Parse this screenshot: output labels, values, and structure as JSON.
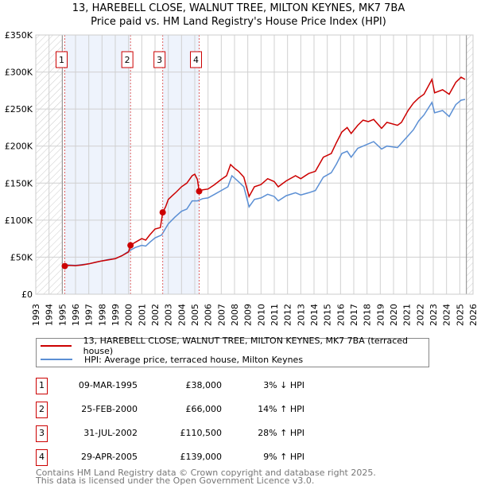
{
  "title": "13, HAREBELL CLOSE, WALNUT TREE, MILTON KEYNES, MK7 7BA",
  "subtitle": "Price paid vs. HM Land Registry's House Price Index (HPI)",
  "chart_data": {
    "type": "line",
    "xlim": [
      1993,
      2026
    ],
    "ylim": [
      0,
      350000
    ],
    "yticks": [
      0,
      50000,
      100000,
      150000,
      200000,
      250000,
      300000,
      350000
    ],
    "ytick_labels": [
      "£0",
      "£50K",
      "£100K",
      "£150K",
      "£200K",
      "£250K",
      "£300K",
      "£350K"
    ],
    "xticks": [
      "1993",
      "1994",
      "1995",
      "1996",
      "1997",
      "1998",
      "1999",
      "2000",
      "2001",
      "2002",
      "2003",
      "2004",
      "2005",
      "2006",
      "2007",
      "2008",
      "2009",
      "2010",
      "2011",
      "2012",
      "2013",
      "2014",
      "2015",
      "2016",
      "2017",
      "2018",
      "2019",
      "2020",
      "2021",
      "2022",
      "2023",
      "2024",
      "2025",
      "2026"
    ],
    "data_start": 1995.0,
    "data_end": 2025.5,
    "series": [
      {
        "name": "13, HAREBELL CLOSE, WALNUT TREE, MILTON KEYNES, MK7 7BA (terraced house)",
        "color": "#cc0000",
        "x": [
          1995.19,
          1995.5,
          1996,
          1996.5,
          1997,
          1997.5,
          1998,
          1998.5,
          1999,
          1999.5,
          2000.0,
          2000.15,
          2000.5,
          2001,
          2001.3,
          2001.6,
          2002,
          2002.4,
          2002.58,
          2002.8,
          2003,
          2003.3,
          2003.6,
          2004,
          2004.4,
          2004.8,
          2005.0,
          2005.2,
          2005.33,
          2005.6,
          2006,
          2006.5,
          2007,
          2007.4,
          2007.7,
          2008,
          2008.3,
          2008.7,
          2009.1,
          2009.5,
          2010,
          2010.5,
          2011,
          2011.3,
          2011.9,
          2012.6,
          2013,
          2013.6,
          2014.1,
          2014.7,
          2015.3,
          2015.7,
          2016.1,
          2016.5,
          2016.8,
          2017.3,
          2017.7,
          2018.1,
          2018.5,
          2019.1,
          2019.5,
          2020.3,
          2020.6,
          2021.1,
          2021.5,
          2021.9,
          2022.3,
          2022.9,
          2023.1,
          2023.7,
          2024.2,
          2024.7,
          2025.1,
          2025.4
        ],
        "y": [
          38000,
          39000,
          38500,
          39500,
          41000,
          43000,
          45000,
          46500,
          48000,
          52000,
          57000,
          66000,
          70000,
          75000,
          73000,
          80000,
          88000,
          90000,
          110500,
          118000,
          128000,
          133000,
          138000,
          145000,
          150000,
          160000,
          162000,
          155000,
          139000,
          141000,
          142000,
          148000,
          155000,
          160000,
          175000,
          170000,
          166000,
          158000,
          132000,
          145000,
          148000,
          156000,
          152000,
          145000,
          153000,
          160000,
          156000,
          163000,
          166000,
          185000,
          190000,
          205000,
          219000,
          225000,
          217000,
          228000,
          235000,
          233000,
          236000,
          224000,
          232000,
          228000,
          232000,
          248000,
          258000,
          265000,
          270000,
          290000,
          272000,
          276000,
          270000,
          286000,
          293000,
          290000
        ]
      },
      {
        "name": "HPI: Average price, terraced house, Milton Keynes",
        "color": "#5b8fd4",
        "x": [
          1995.19,
          1995.5,
          1996,
          1996.5,
          1997,
          1997.5,
          1998,
          1998.5,
          1999,
          1999.5,
          2000.0,
          2000.5,
          2001,
          2001.3,
          2001.6,
          2002,
          2002.5,
          2003,
          2003.5,
          2004,
          2004.4,
          2004.8,
          2005.2,
          2005.6,
          2006,
          2006.5,
          2007,
          2007.5,
          2007.8,
          2008.3,
          2008.7,
          2009.1,
          2009.5,
          2010,
          2010.5,
          2011,
          2011.3,
          2011.9,
          2012.6,
          2013,
          2013.6,
          2014.1,
          2014.7,
          2015.3,
          2015.7,
          2016.1,
          2016.5,
          2016.8,
          2017.3,
          2017.7,
          2018.5,
          2019.1,
          2019.5,
          2020.3,
          2021.1,
          2021.5,
          2021.9,
          2022.3,
          2022.9,
          2023.1,
          2023.7,
          2024.2,
          2024.7,
          2025.1,
          2025.4
        ],
        "y": [
          40000,
          39500,
          39000,
          40000,
          41000,
          43000,
          45000,
          47000,
          48000,
          52000,
          58000,
          63000,
          66000,
          65000,
          70000,
          76000,
          80000,
          95000,
          104000,
          112000,
          115000,
          126000,
          126000,
          129000,
          130000,
          135000,
          140000,
          145000,
          160000,
          152000,
          145000,
          118000,
          128000,
          130000,
          135000,
          132000,
          126000,
          133000,
          137000,
          134000,
          137000,
          140000,
          158000,
          164000,
          176000,
          190000,
          193000,
          185000,
          197000,
          200000,
          206000,
          196000,
          200000,
          198000,
          214000,
          222000,
          234000,
          242000,
          259000,
          245000,
          248000,
          240000,
          256000,
          262000,
          263000
        ]
      }
    ],
    "sales": [
      {
        "label": "1",
        "x": 2000.15,
        "y": 0
      }
    ],
    "markers": [
      {
        "label": "1",
        "x": 1995.19,
        "y": 38000
      },
      {
        "label": "2",
        "x": 2000.15,
        "y": 66000
      },
      {
        "label": "3",
        "x": 2002.58,
        "y": 110500
      },
      {
        "label": "4",
        "x": 2005.33,
        "y": 139000
      }
    ],
    "shaded_ranges": [
      [
        1995.19,
        2000.15
      ],
      [
        2002.58,
        2005.33
      ]
    ]
  },
  "legend": {
    "red": "13, HAREBELL CLOSE, WALNUT TREE, MILTON KEYNES, MK7 7BA (terraced house)",
    "blue": "HPI: Average price, terraced house, Milton Keynes"
  },
  "transactions": [
    {
      "num": "1",
      "date": "09-MAR-1995",
      "price": "£38,000",
      "hpi": "3% ↓ HPI"
    },
    {
      "num": "2",
      "date": "25-FEB-2000",
      "price": "£66,000",
      "hpi": "14% ↑ HPI"
    },
    {
      "num": "3",
      "date": "31-JUL-2002",
      "price": "£110,500",
      "hpi": "28% ↑ HPI"
    },
    {
      "num": "4",
      "date": "29-APR-2005",
      "price": "£139,000",
      "hpi": "9% ↑ HPI"
    }
  ],
  "footer": {
    "line1": "Contains HM Land Registry data © Crown copyright and database right 2025.",
    "line2": "This data is licensed under the Open Government Licence v3.0."
  }
}
